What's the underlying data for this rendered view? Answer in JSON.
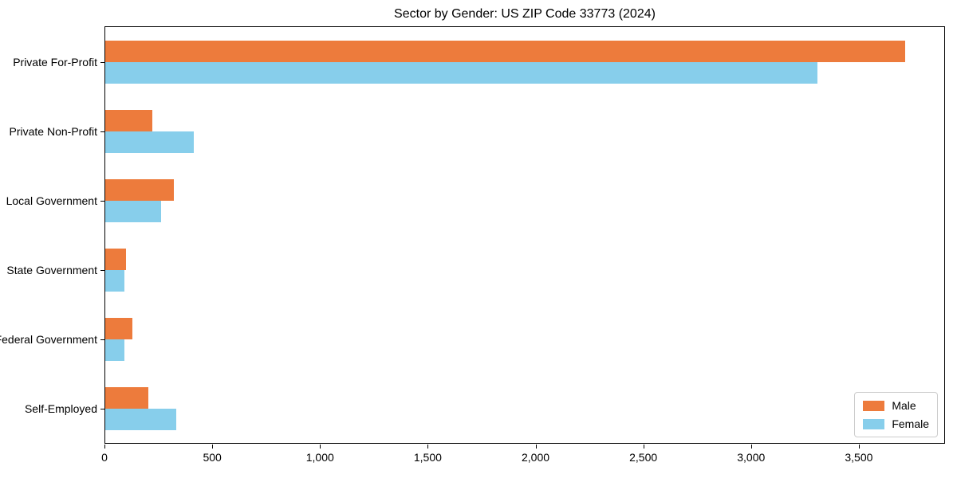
{
  "chart_data": {
    "type": "bar",
    "orientation": "horizontal",
    "title": "Sector by Gender: US ZIP Code 33773 (2024)",
    "categories": [
      "Private For-Profit",
      "Private Non-Profit",
      "Local Government",
      "State Government",
      "Federal Government",
      "Self-Employed"
    ],
    "series": [
      {
        "name": "Male",
        "color": "#ED7B3C",
        "values": [
          3720,
          220,
          320,
          95,
          125,
          200
        ]
      },
      {
        "name": "Female",
        "color": "#87CEEB",
        "values": [
          3310,
          410,
          260,
          90,
          90,
          330
        ]
      }
    ],
    "xlabel": "",
    "ylabel": "",
    "xlim": [
      0,
      3900
    ],
    "xticks": [
      0,
      500,
      1000,
      1500,
      2000,
      2500,
      3000,
      3500
    ],
    "xtick_labels": [
      "0",
      "500",
      "1,000",
      "1,500",
      "2,000",
      "2,500",
      "3,000",
      "3,500"
    ],
    "grid": false,
    "legend_position": "lower right",
    "spine_color": "#000000",
    "background_color": "#ffffff"
  }
}
